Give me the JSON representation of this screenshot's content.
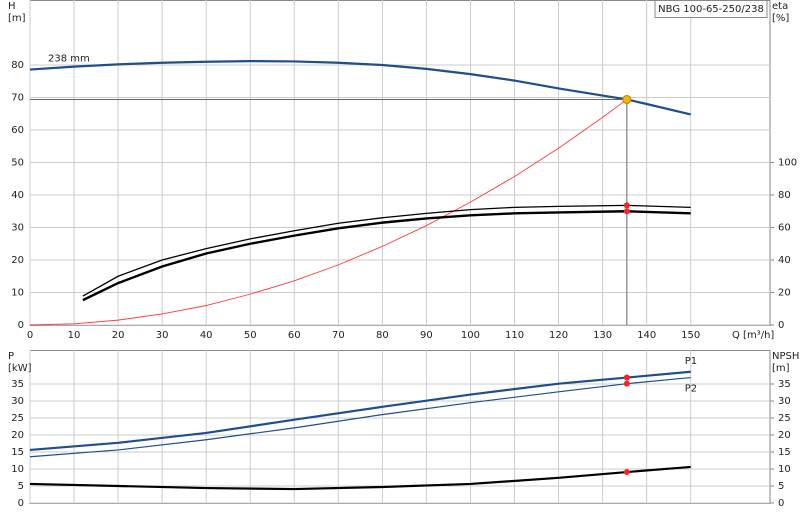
{
  "chart_data": [
    {
      "type": "line",
      "title": "NBG 100-65-250/238",
      "ylabel": "H",
      "ylabel_unit": "[m]",
      "y2label": "eta",
      "y2label_unit": "[%]",
      "xlabel": "Q [m³/h]",
      "xlim": [
        0,
        168
      ],
      "xticks": [
        0,
        10,
        20,
        30,
        40,
        50,
        60,
        70,
        80,
        90,
        100,
        110,
        120,
        130,
        140,
        150
      ],
      "ylim": [
        0,
        100
      ],
      "yticks": [
        0,
        10,
        20,
        30,
        40,
        50,
        60,
        70,
        80
      ],
      "y2lim": [
        0,
        200
      ],
      "y2ticks": [
        0,
        20,
        40,
        60,
        80,
        100
      ],
      "grid": true,
      "highlight_x": 135.5,
      "series": [
        {
          "name": "238 mm",
          "color": "#1f4e8c",
          "width": 2.2,
          "marker_color": "#f5b400",
          "operating": true,
          "x": [
            0,
            10,
            20,
            30,
            40,
            50,
            60,
            70,
            80,
            90,
            100,
            110,
            120,
            130,
            135.5,
            140,
            150
          ],
          "values": [
            78.6,
            79.5,
            80.2,
            80.7,
            81.0,
            81.2,
            81.1,
            80.7,
            80.0,
            78.8,
            77.2,
            75.2,
            72.8,
            70.6,
            69.4,
            68.0,
            64.8
          ]
        },
        {
          "color": "#ff3b3b",
          "width": 0.9,
          "x": [
            0,
            10,
            20,
            30,
            40,
            50,
            60,
            70,
            80,
            90,
            100,
            110,
            120,
            130,
            135.5
          ],
          "values": [
            0,
            0.38,
            1.5,
            3.4,
            6.0,
            9.5,
            13.6,
            18.5,
            24.2,
            30.6,
            37.8,
            45.7,
            54.4,
            63.9,
            69.4
          ]
        },
        {
          "color": "#000000",
          "width": 1.3,
          "axis": "y2",
          "marker_color": "#ff2020",
          "x": [
            12,
            20,
            30,
            40,
            50,
            60,
            70,
            80,
            90,
            100,
            110,
            120,
            135.5,
            150
          ],
          "values": [
            17.8,
            30,
            40,
            47,
            53,
            58,
            62.6,
            66,
            68.7,
            71,
            72.4,
            73,
            73.6,
            72.4
          ]
        },
        {
          "color": "#000000",
          "width": 2.4,
          "axis": "y2",
          "marker_color": "#ff2020",
          "x": [
            12,
            20,
            30,
            40,
            50,
            60,
            70,
            80,
            90,
            100,
            110,
            120,
            135.5,
            150
          ],
          "values": [
            15.3,
            25.8,
            36,
            44,
            50,
            55,
            59.5,
            63,
            65.6,
            67.5,
            68.7,
            69.3,
            70,
            68.7
          ]
        }
      ]
    },
    {
      "type": "line",
      "ylabel": "P",
      "ylabel_unit": "[kW]",
      "y2label": "NPSH",
      "y2label_unit": "[m]",
      "xlim": [
        0,
        168
      ],
      "xticks": [
        0,
        10,
        20,
        30,
        40,
        50,
        60,
        70,
        80,
        90,
        100,
        110,
        120,
        130,
        140,
        150
      ],
      "show_xtick_labels": false,
      "ylim": [
        0,
        45
      ],
      "yticks": [
        0,
        5,
        10,
        15,
        20,
        25,
        30,
        35
      ],
      "y2lim": [
        0,
        45
      ],
      "y2ticks": [
        0,
        5,
        10,
        15,
        20,
        25,
        30,
        35
      ],
      "grid": true,
      "highlight_x": 135.5,
      "series": [
        {
          "name": "P1",
          "color": "#1f4e8c",
          "width": 2.2,
          "marker_color": "#ff2020",
          "x": [
            0,
            20,
            40,
            60,
            80,
            100,
            120,
            135.5,
            150
          ],
          "values": [
            15.6,
            17.7,
            20.6,
            24.5,
            28.3,
            31.9,
            35.1,
            36.9,
            38.6
          ]
        },
        {
          "name": "P2",
          "color": "#1f4e8c",
          "width": 1.2,
          "marker_color": "#ff2020",
          "x": [
            0,
            20,
            40,
            60,
            80,
            100,
            120,
            135.5,
            150
          ],
          "values": [
            13.6,
            15.6,
            18.6,
            22.1,
            26.0,
            29.5,
            32.7,
            35.1,
            36.9
          ]
        },
        {
          "color": "#000000",
          "width": 2.2,
          "axis": "y2",
          "marker_color": "#ff2020",
          "x": [
            0,
            20,
            40,
            60,
            80,
            100,
            120,
            135.5,
            150
          ],
          "values": [
            5.6,
            5.0,
            4.4,
            4.1,
            4.7,
            5.6,
            7.4,
            9.1,
            10.6
          ]
        }
      ]
    }
  ]
}
